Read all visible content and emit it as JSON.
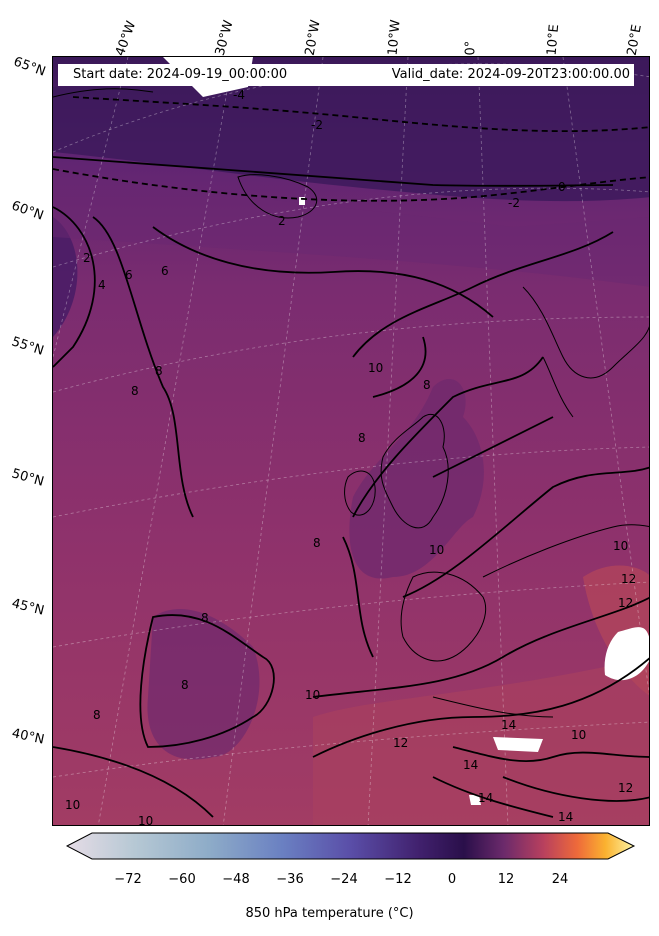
{
  "header": {
    "start_date": "Start date: 2024-09-19_00:00:00",
    "valid_date": "Valid_date: 2024-09-20T23:00:00.00"
  },
  "graticule": {
    "lon_labels": [
      "40°W",
      "30°W",
      "20°W",
      "10°W",
      "0°",
      "10°E",
      "20°E"
    ],
    "lat_labels": [
      "65°N",
      "60°N",
      "55°N",
      "50°N",
      "45°N",
      "40°N"
    ]
  },
  "contour_labels": [
    "-4",
    "-2",
    "0",
    "-2",
    "2",
    "2",
    "4",
    "6",
    "6",
    "8",
    "8",
    "8",
    "8",
    "8",
    "8",
    "8",
    "8",
    "10",
    "10",
    "10",
    "10",
    "10",
    "10",
    "10",
    "12",
    "12",
    "12",
    "12",
    "14",
    "14",
    "14",
    "14"
  ],
  "colorbar": {
    "label": "850 hPa temperature (°C)",
    "ticks": [
      "−72",
      "−60",
      "−48",
      "−36",
      "−24",
      "−12",
      "0",
      "12",
      "24"
    ],
    "range": [
      -84,
      36
    ],
    "colormap": [
      "#e6dce6",
      "#9bb8cc",
      "#6e8fc4",
      "#5a5cb8",
      "#4e2e86",
      "#2a0f4a",
      "#6b2a6b",
      "#b8405e",
      "#ee6a3a",
      "#fbb230",
      "#fcf5a6"
    ]
  },
  "colors": {
    "cold_deep": "#3d1a5c",
    "cool": "#5e2570",
    "mid": "#7a2d6e",
    "warm": "#93356a",
    "hot": "#b04560"
  }
}
